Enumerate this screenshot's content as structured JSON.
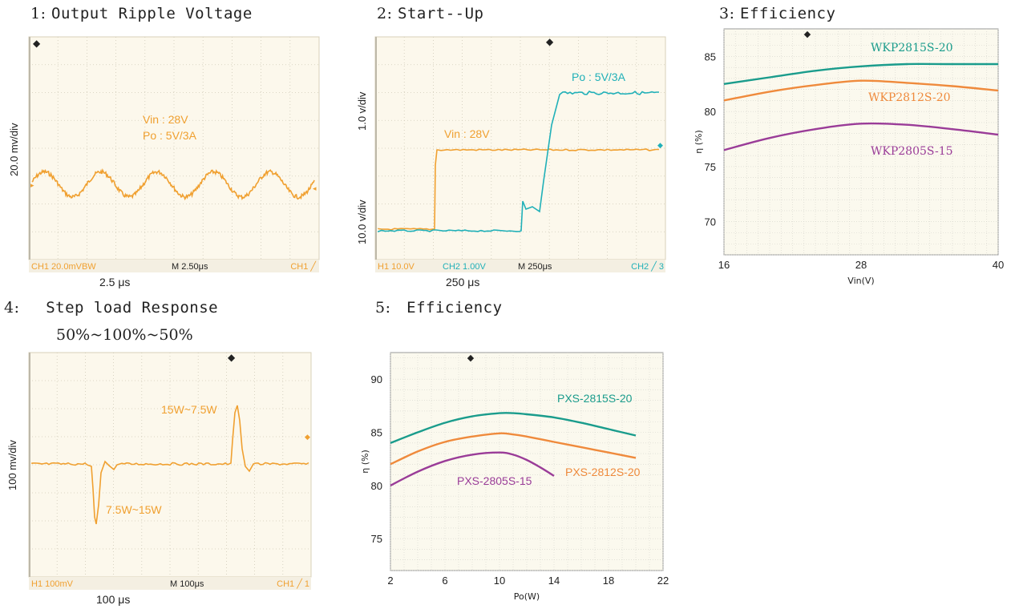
{
  "panels": {
    "p1": {
      "num": "1:",
      "title": "Output Ripple Voltage",
      "ylabel": "20.0 mv/div",
      "below": "2.5 μs"
    },
    "p2": {
      "num": "2:",
      "title": "Start--Up",
      "ylabel_top": "1.0 v/div",
      "ylabel_bottom": "10.0 v/div",
      "below": "250 μs"
    },
    "p3": {
      "num": "3:",
      "title": "Efficiency"
    },
    "p4": {
      "num": "4:",
      "title": "Step load Response",
      "subtitle": "50%~100%~50%",
      "ylabel": "100 mv/div",
      "below": "100 μs"
    },
    "p5": {
      "num": "5:",
      "title": "Efficiency"
    }
  },
  "colors": {
    "orange": "#f0a030",
    "cyan": "#20b0b8",
    "green": "#1a9c8c",
    "lineorange": "#ef8a3c",
    "purple": "#9a3c98",
    "grid": "#c8c8c8",
    "bg_scope": "#fcf8ec",
    "bg_plot": "#fbf9ee"
  },
  "chart_data": [
    {
      "type": "line",
      "name": "scope-ripple",
      "annotations": [
        "Vin : 28V",
        "Po : 5V/3A"
      ],
      "footer": {
        "ch1": "CH1 20.0mVBW",
        "timebase": "M 2.50μs",
        "trigger": "CH1 ╱"
      },
      "series": [
        {
          "color": "orange",
          "shape": "sine",
          "cycles": 5,
          "amplitude_div": 0.45,
          "center_div": 5.3
        }
      ]
    },
    {
      "type": "line",
      "name": "scope-startup",
      "annotations": [
        "Vin : 28V",
        "Po : 5V/3A"
      ],
      "footer": {
        "ch1": "H1 10.0V",
        "ch2": "CH2 1.00V",
        "timebase": "M 250μs",
        "trigger": "CH2 ╱ 3"
      }
    },
    {
      "type": "line",
      "name": "efficiency-vin",
      "xlabel": "Vin(V)",
      "ylabel": "η (%)",
      "x_ticks": [
        16,
        28,
        40
      ],
      "xlim": [
        16,
        40
      ],
      "y_ticks": [
        70,
        75,
        80,
        85
      ],
      "ylim": [
        67,
        87.5
      ],
      "series": [
        {
          "name": "WKP2815S-20",
          "color": "green",
          "x": [
            16,
            20,
            24,
            28,
            32,
            36,
            40
          ],
          "y": [
            82.5,
            83.1,
            83.7,
            84.1,
            84.3,
            84.3,
            84.3
          ]
        },
        {
          "name": "WKP2812S-20",
          "color": "lineorange",
          "x": [
            16,
            20,
            24,
            28,
            32,
            36,
            40
          ],
          "y": [
            81.0,
            81.8,
            82.4,
            82.8,
            82.6,
            82.3,
            81.9
          ]
        },
        {
          "name": "WKP2805S-15",
          "color": "purple",
          "x": [
            16,
            20,
            24,
            28,
            32,
            36,
            40
          ],
          "y": [
            76.5,
            77.6,
            78.4,
            78.9,
            78.8,
            78.4,
            77.9
          ]
        }
      ]
    },
    {
      "type": "line",
      "name": "scope-step",
      "annotations": [
        "15W~7.5W",
        "7.5W~15W"
      ],
      "footer": {
        "ch1": "H1 100mV",
        "timebase": "M 100μs",
        "trigger": "CH1 ╱ 1"
      }
    },
    {
      "type": "line",
      "name": "efficiency-po",
      "xlabel": "Po(W)",
      "ylabel": "η (%)",
      "x_ticks": [
        2,
        6,
        10,
        14,
        18,
        22
      ],
      "xlim": [
        2,
        22
      ],
      "y_ticks": [
        75,
        80,
        85,
        90
      ],
      "ylim": [
        72,
        92.5
      ],
      "series": [
        {
          "name": "PXS-2815S-20",
          "color": "green",
          "x": [
            2,
            4,
            6,
            8,
            10,
            11,
            12,
            14,
            16,
            18,
            20
          ],
          "y": [
            84.0,
            85.0,
            85.9,
            86.5,
            86.8,
            86.8,
            86.7,
            86.4,
            85.9,
            85.3,
            84.7
          ]
        },
        {
          "name": "PXS-2812S-20",
          "color": "lineorange",
          "x": [
            2,
            4,
            6,
            8,
            10,
            11,
            12,
            14,
            16,
            18,
            20
          ],
          "y": [
            82.0,
            83.2,
            84.1,
            84.6,
            84.9,
            84.8,
            84.6,
            84.1,
            83.6,
            83.1,
            82.6
          ]
        },
        {
          "name": "PXS-2805S-15",
          "color": "purple",
          "x": [
            2,
            4,
            6,
            8,
            10,
            11,
            12,
            13,
            14
          ],
          "y": [
            80.0,
            81.3,
            82.3,
            82.9,
            83.1,
            82.9,
            82.4,
            81.7,
            80.9
          ]
        }
      ]
    }
  ]
}
